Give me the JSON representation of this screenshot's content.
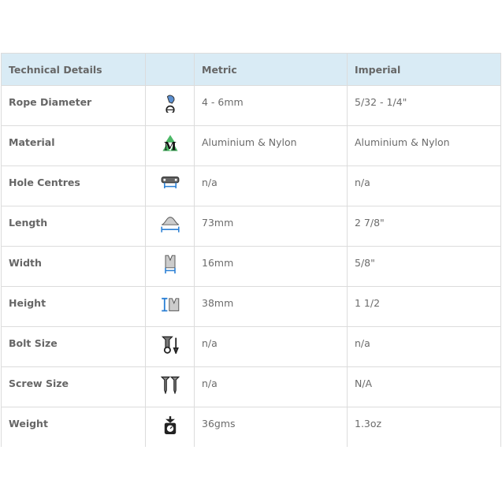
{
  "table": {
    "headers": [
      "Technical Details",
      "",
      "Metric",
      "Imperial"
    ],
    "rows": [
      {
        "label": "Rope Diameter",
        "icon": "rope-diameter-icon",
        "metric": "4 - 6mm",
        "imperial": "5/32 - 1/4\""
      },
      {
        "label": "Material",
        "icon": "material-recycle-icon",
        "metric": "Aluminium & Nylon",
        "imperial": "Aluminium & Nylon"
      },
      {
        "label": "Hole Centres",
        "icon": "hole-centres-icon",
        "metric": "n/a",
        "imperial": "n/a"
      },
      {
        "label": "Length",
        "icon": "length-icon",
        "metric": "73mm",
        "imperial": "2 7/8\""
      },
      {
        "label": "Width",
        "icon": "width-icon",
        "metric": "16mm",
        "imperial": "5/8\""
      },
      {
        "label": "Height",
        "icon": "height-icon",
        "metric": "38mm",
        "imperial": "1 1/2"
      },
      {
        "label": "Bolt Size",
        "icon": "bolt-icon",
        "metric": "n/a",
        "imperial": "n/a"
      },
      {
        "label": "Screw Size",
        "icon": "screw-icon",
        "metric": "n/a",
        "imperial": "N/A"
      },
      {
        "label": "Weight",
        "icon": "weight-scale-icon",
        "metric": "36gms",
        "imperial": "1.3oz"
      }
    ]
  },
  "colors": {
    "header_bg": "#d9ebf5",
    "accent_blue": "#2a7fd4",
    "recycle_green": "#4cb866"
  }
}
